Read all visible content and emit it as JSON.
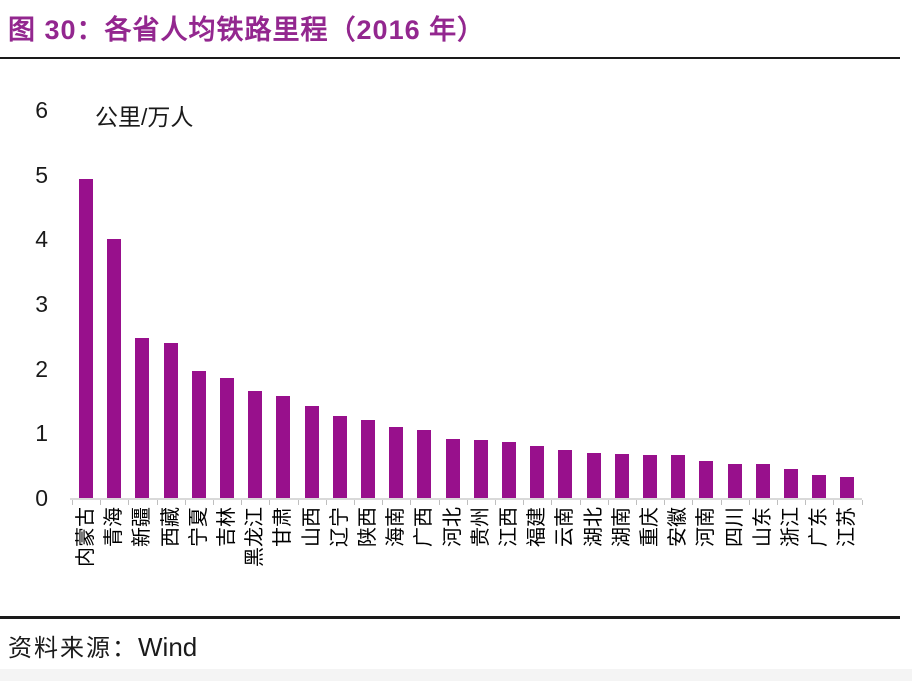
{
  "title": "图 30：各省人均铁路里程（2016 年）",
  "source": {
    "label": "资料来源：",
    "value": "Wind"
  },
  "colors": {
    "title": "#93278F",
    "bar": "#98108C",
    "axis_line": "#D9D9D9",
    "rule": "#1A1A1A"
  },
  "chart_data": {
    "type": "bar",
    "title": "图 30：各省人均铁路里程（2016 年）",
    "unit_label": "公里/万人",
    "xlabel": "",
    "ylabel": "公里/万人",
    "categories": [
      "内蒙古",
      "青海",
      "新疆",
      "西藏",
      "宁夏",
      "吉林",
      "黑龙江",
      "甘肃",
      "山西",
      "辽宁",
      "陕西",
      "海南",
      "广西",
      "河北",
      "贵州",
      "江西",
      "福建",
      "云南",
      "湖北",
      "湖南",
      "重庆",
      "安徽",
      "河南",
      "四川",
      "山东",
      "浙江",
      "广东",
      "江苏"
    ],
    "values": [
      4.93,
      4.0,
      2.48,
      2.4,
      1.97,
      1.86,
      1.65,
      1.57,
      1.43,
      1.27,
      1.21,
      1.1,
      1.05,
      0.92,
      0.9,
      0.86,
      0.8,
      0.74,
      0.7,
      0.68,
      0.67,
      0.66,
      0.57,
      0.53,
      0.52,
      0.45,
      0.36,
      0.33
    ],
    "ylim": [
      0,
      6
    ],
    "y_ticks": [
      0,
      1,
      2,
      3,
      4,
      5,
      6
    ],
    "grid": false,
    "legend": "none",
    "x_label_rotation": -90,
    "bar_color": "#98108C"
  }
}
